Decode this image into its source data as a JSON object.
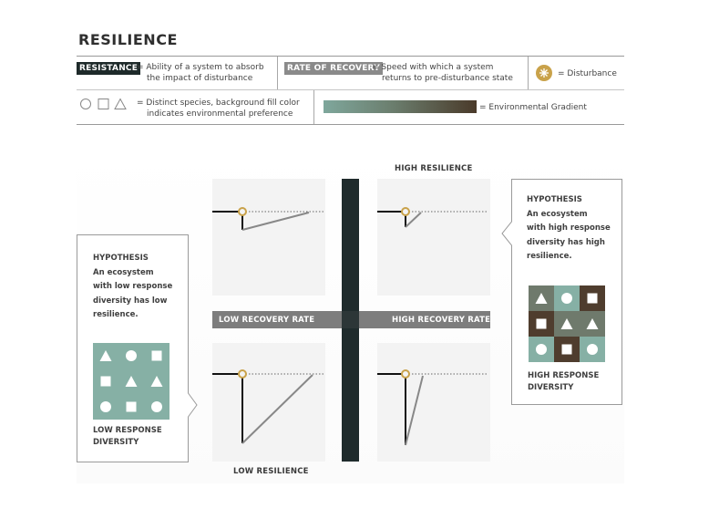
{
  "title": "RESILIENCE",
  "legend": {
    "resistance_tag": "RESISTANCE",
    "resistance_desc_1": "= Ability of a system to absorb",
    "resistance_desc_2": "the impact of disturbance",
    "recovery_tag": "RATE OF RECOVERY",
    "recovery_desc_1": "= Speed with which a system",
    "recovery_desc_2": "returns to pre-disturbance state",
    "disturbance_label": "= Disturbance",
    "species_desc_1": "= Distinct species, background fill color",
    "species_desc_2": "indicates environmental preference",
    "gradient_label": "= Environmental Gradient"
  },
  "diagram": {
    "high_resilience": "HIGH RESILIENCE",
    "low_resilience": "LOW RESILIENCE",
    "low_recovery_rate": "LOW RECOVERY RATE",
    "high_recovery_rate": "HIGH RECOVERY RATE"
  },
  "left_callout": {
    "heading": "HYPOTHESIS",
    "lines": [
      "An ecosystem",
      "with low response",
      "diversity has low",
      "resilience."
    ],
    "caption_1": "LOW RESPONSE",
    "caption_2": "DIVERSITY",
    "grid": [
      [
        "triangle",
        "circle",
        "square"
      ],
      [
        "square",
        "triangle",
        "triangle"
      ],
      [
        "circle",
        "square",
        "circle"
      ]
    ],
    "fill": "#86b0a5"
  },
  "right_callout": {
    "heading": "HYPOTHESIS",
    "lines": [
      "An ecosystem",
      "with high response",
      "diversity has high",
      "resilience."
    ],
    "caption_1": "HIGH RESPONSE",
    "caption_2": "DIVERSITY",
    "grid": [
      [
        "triangle",
        "circle",
        "square"
      ],
      [
        "square",
        "triangle",
        "triangle"
      ],
      [
        "circle",
        "square",
        "circle"
      ]
    ],
    "fills": [
      [
        "#6f7a6c",
        "#86b0a5",
        "#4f3d2e"
      ],
      [
        "#4f3d2e",
        "#6f7a6c",
        "#6f7a6c"
      ],
      [
        "#86b0a5",
        "#4f3d2e",
        "#86b0a5"
      ]
    ]
  },
  "colors": {
    "resistance_tag": "#1e2a2a",
    "recovery_tag": "#8a8a8a",
    "disturbance": "#c9a24a",
    "gradient_start": "#7fa79c",
    "gradient_end": "#4a3a2a",
    "axis_bar": "#1f2b2c",
    "band": "#7d7d7d"
  }
}
